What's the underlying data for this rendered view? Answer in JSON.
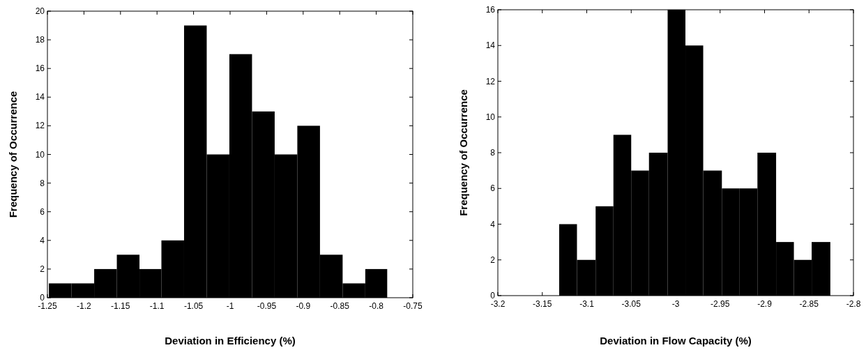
{
  "chart_data": [
    {
      "type": "histogram",
      "xlabel": "Deviation in Efficiency (%)",
      "ylabel": "Frequency of Occurrence",
      "color": "#000000",
      "bins": [
        -1.248,
        -1.217,
        -1.186,
        -1.155,
        -1.124,
        -1.094,
        -1.063,
        -1.032,
        -1.001,
        -0.97,
        -0.939,
        -0.908,
        -0.877,
        -0.846,
        -0.815,
        -0.785
      ],
      "values": [
        1,
        1,
        2,
        3,
        2,
        4,
        19,
        10,
        17,
        13,
        10,
        12,
        3,
        1,
        2
      ],
      "xlim": [
        -1.25,
        -0.75
      ],
      "xticks": [
        -1.25,
        -1.2,
        -1.15,
        -1.1,
        -1.05,
        -1,
        -0.95,
        -0.9,
        -0.85,
        -0.8,
        -0.75
      ],
      "ylim": [
        0,
        20
      ],
      "yticks": [
        0,
        2,
        4,
        6,
        8,
        10,
        12,
        14,
        16,
        18,
        20
      ]
    },
    {
      "type": "histogram",
      "xlabel": "Deviation in Flow Capacity (%)",
      "ylabel": "Frequency of Occurrence",
      "color": "#000000",
      "bins": [
        -3.131,
        -3.111,
        -3.09,
        -3.07,
        -3.05,
        -3.03,
        -3.009,
        -2.989,
        -2.969,
        -2.948,
        -2.928,
        -2.908,
        -2.887,
        -2.867,
        -2.847,
        -2.826
      ],
      "values": [
        4,
        2,
        5,
        9,
        7,
        8,
        16,
        14,
        7,
        6,
        6,
        8,
        3,
        2,
        3
      ],
      "xlim": [
        -3.2,
        -2.8
      ],
      "xticks": [
        -3.2,
        -3.15,
        -3.1,
        -3.05,
        -3,
        -2.95,
        -2.9,
        -2.85,
        -2.8
      ],
      "ylim": [
        0,
        16
      ],
      "yticks": [
        0,
        2,
        4,
        6,
        8,
        10,
        12,
        14,
        16
      ]
    }
  ]
}
